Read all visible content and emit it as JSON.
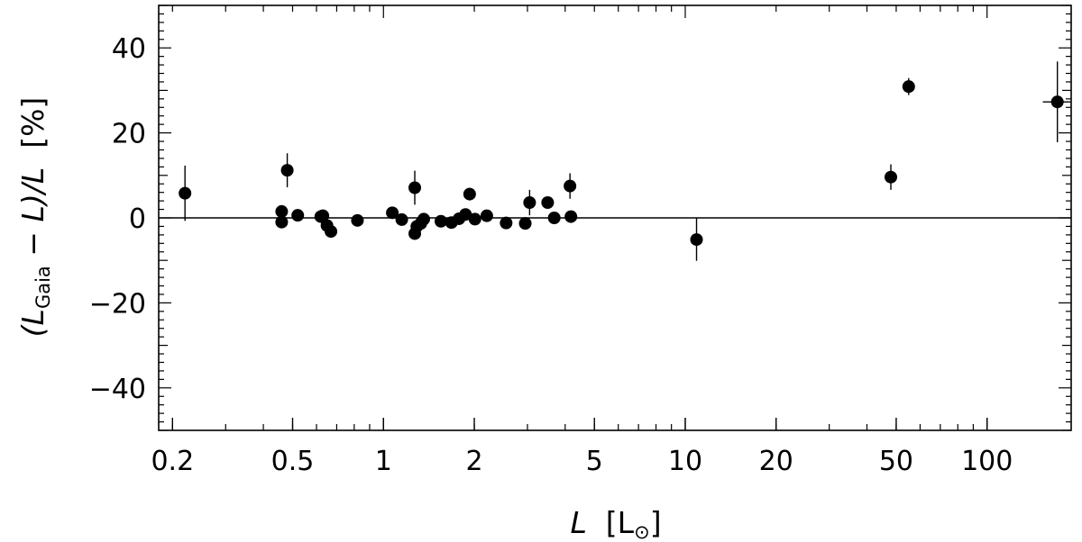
{
  "chart_data": {
    "type": "scatter",
    "xscale": "log",
    "xlim": [
      0.18,
      190
    ],
    "ylim": [
      -50,
      50
    ],
    "xlabel_parts": [
      "L",
      "  [L",
      "⊙",
      "]"
    ],
    "ylabel_parts": [
      "(L",
      "Gaia",
      " − L)/L",
      "  [%]"
    ],
    "x_ticks": [
      {
        "value": 0.2,
        "label": "0.2"
      },
      {
        "value": 0.5,
        "label": "0.5"
      },
      {
        "value": 1,
        "label": "1"
      },
      {
        "value": 2,
        "label": "2"
      },
      {
        "value": 5,
        "label": "5"
      },
      {
        "value": 10,
        "label": "10"
      },
      {
        "value": 20,
        "label": "20"
      },
      {
        "value": 50,
        "label": "50"
      },
      {
        "value": 100,
        "label": "100"
      }
    ],
    "y_ticks": [
      {
        "value": 40,
        "label": "40"
      },
      {
        "value": 20,
        "label": "20"
      },
      {
        "value": 0,
        "label": "0"
      },
      {
        "value": -20,
        "label": "−20"
      },
      {
        "value": -40,
        "label": "−40"
      }
    ],
    "reference_line_y": 0,
    "points": [
      {
        "x": 0.22,
        "y": 5.8,
        "yerr": 6.5,
        "xerr": 0
      },
      {
        "x": 0.46,
        "y": 1.5,
        "yerr": 1.5,
        "xerr": 0
      },
      {
        "x": 0.46,
        "y": -1.0,
        "yerr": 0,
        "xerr": 0
      },
      {
        "x": 0.48,
        "y": 11.2,
        "yerr": 4.0,
        "xerr": 0
      },
      {
        "x": 0.52,
        "y": 0.6,
        "yerr": 0,
        "xerr": 0
      },
      {
        "x": 0.62,
        "y": 0.3,
        "yerr": 0,
        "xerr": 0
      },
      {
        "x": 0.63,
        "y": 0.5,
        "yerr": 0,
        "xerr": 0
      },
      {
        "x": 0.65,
        "y": -1.8,
        "yerr": 0,
        "xerr": 0
      },
      {
        "x": 0.67,
        "y": -3.2,
        "yerr": 0,
        "xerr": 0
      },
      {
        "x": 0.82,
        "y": -0.6,
        "yerr": 0,
        "xerr": 0
      },
      {
        "x": 1.07,
        "y": 1.2,
        "yerr": 0,
        "xerr": 0
      },
      {
        "x": 1.15,
        "y": -0.4,
        "yerr": 0,
        "xerr": 0
      },
      {
        "x": 1.27,
        "y": -3.7,
        "yerr": 0,
        "xerr": 0
      },
      {
        "x": 1.27,
        "y": 7.1,
        "yerr": 4.0,
        "xerr": 0
      },
      {
        "x": 1.29,
        "y": -2.0,
        "yerr": 0,
        "xerr": 0
      },
      {
        "x": 1.33,
        "y": -1.3,
        "yerr": 0,
        "xerr": 0
      },
      {
        "x": 1.36,
        "y": -0.3,
        "yerr": 0,
        "xerr": 0
      },
      {
        "x": 1.55,
        "y": -0.8,
        "yerr": 0,
        "xerr": 0
      },
      {
        "x": 1.68,
        "y": -1.1,
        "yerr": 0,
        "xerr": 0
      },
      {
        "x": 1.78,
        "y": -0.2,
        "yerr": 0,
        "xerr": 0
      },
      {
        "x": 1.87,
        "y": 0.8,
        "yerr": 0,
        "xerr": 0
      },
      {
        "x": 1.93,
        "y": 5.6,
        "yerr": 1.5,
        "xerr": 0
      },
      {
        "x": 2.01,
        "y": -0.3,
        "yerr": 0,
        "xerr": 0
      },
      {
        "x": 2.2,
        "y": 0.5,
        "yerr": 0,
        "xerr": 0
      },
      {
        "x": 2.55,
        "y": -1.2,
        "yerr": 0,
        "xerr": 0
      },
      {
        "x": 2.95,
        "y": -1.3,
        "yerr": 0,
        "xerr": 0
      },
      {
        "x": 3.05,
        "y": 3.6,
        "yerr": 3.0,
        "xerr": 0
      },
      {
        "x": 3.5,
        "y": 3.6,
        "yerr": 0,
        "xerr": 0
      },
      {
        "x": 3.68,
        "y": 0.0,
        "yerr": 0,
        "xerr": 0
      },
      {
        "x": 4.15,
        "y": 7.5,
        "yerr": 3.0,
        "xerr": 0
      },
      {
        "x": 4.18,
        "y": 0.3,
        "yerr": 0,
        "xerr": 0
      },
      {
        "x": 10.9,
        "y": -5.1,
        "yerr": 5.0,
        "xerr": 0
      },
      {
        "x": 48.0,
        "y": 9.6,
        "yerr": 3.0,
        "xerr": 0
      },
      {
        "x": 55.0,
        "y": 30.9,
        "yerr": 2.0,
        "xerr": 0
      },
      {
        "x": 171.0,
        "y": 27.3,
        "yerr": 9.5,
        "xerr": 18
      }
    ]
  }
}
